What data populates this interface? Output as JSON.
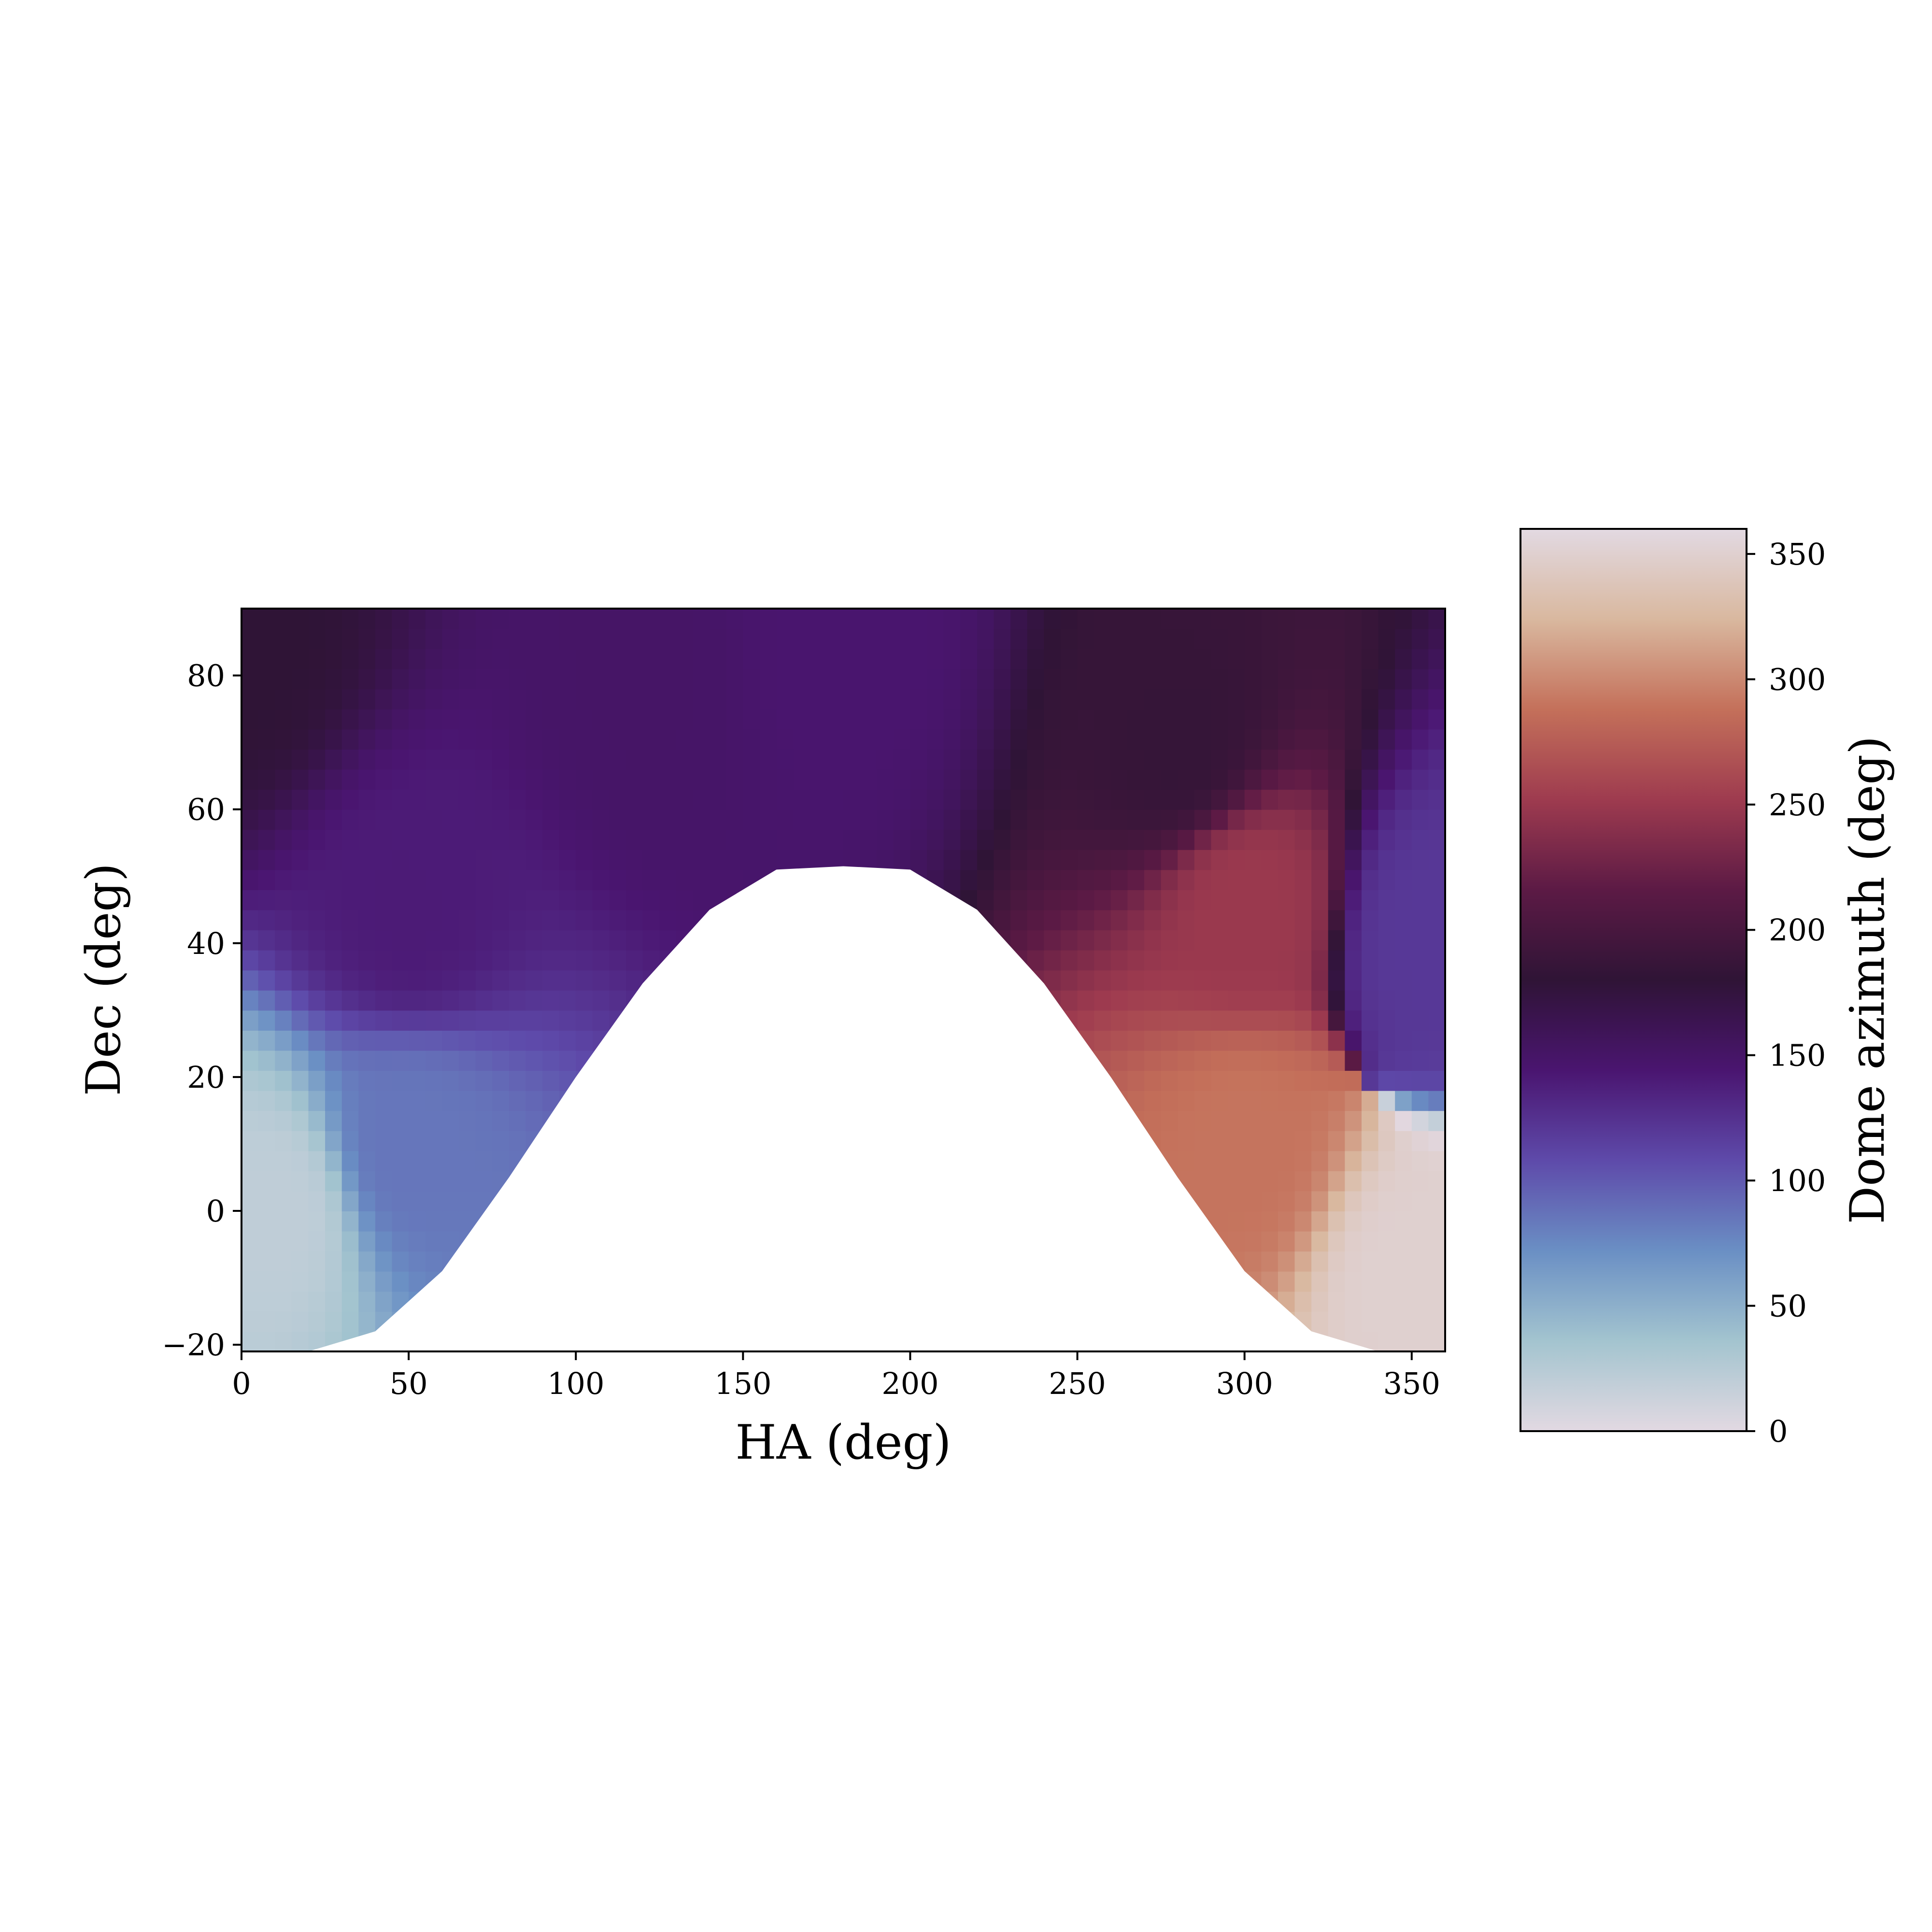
{
  "chart_data": {
    "type": "heatmap",
    "title": "",
    "xlabel": "HA (deg)",
    "ylabel": "Dec (deg)",
    "xlim": [
      0,
      360
    ],
    "ylim": [
      -21,
      90
    ],
    "xticks": [
      0,
      50,
      100,
      150,
      200,
      250,
      300,
      350
    ],
    "yticks": [
      -20,
      0,
      20,
      40,
      60,
      80
    ],
    "ytick_labels": [
      "−20",
      "0",
      "20",
      "40",
      "60",
      "80"
    ],
    "colorbar": {
      "label": "Dome azimuth (deg)",
      "range": [
        0,
        360
      ],
      "ticks": [
        0,
        50,
        100,
        150,
        200,
        250,
        300,
        350
      ],
      "colormap": "twilight_shifted",
      "colors": [
        "#e2d9e2",
        "#a3c4cf",
        "#6a8fc4",
        "#5e4aaa",
        "#4a1570",
        "#2f1436",
        "#5c1a45",
        "#9e3b4f",
        "#c4705a",
        "#d9b89f",
        "#e2d9e2"
      ]
    },
    "masked_region": {
      "description": "no data (white) where telescope is below horizon",
      "dec_upper_bound": [
        {
          "ha": 0,
          "dec": -21
        },
        {
          "ha": 20,
          "dec": -21
        },
        {
          "ha": 40,
          "dec": -18
        },
        {
          "ha": 60,
          "dec": -9
        },
        {
          "ha": 80,
          "dec": 5
        },
        {
          "ha": 100,
          "dec": 20
        },
        {
          "ha": 120,
          "dec": 34
        },
        {
          "ha": 140,
          "dec": 45
        },
        {
          "ha": 160,
          "dec": 51
        },
        {
          "ha": 180,
          "dec": 51.5
        },
        {
          "ha": 200,
          "dec": 51
        },
        {
          "ha": 220,
          "dec": 45
        },
        {
          "ha": 240,
          "dec": 34
        },
        {
          "ha": 260,
          "dec": 20
        },
        {
          "ha": 280,
          "dec": 5
        },
        {
          "ha": 300,
          "dec": -9
        },
        {
          "ha": 320,
          "dec": -18
        },
        {
          "ha": 340,
          "dec": -21
        },
        {
          "ha": 360,
          "dec": -21
        }
      ]
    },
    "value_field_samples": [
      {
        "ha": 0,
        "dec": 85,
        "az": 180
      },
      {
        "ha": 120,
        "dec": 80,
        "az": 150
      },
      {
        "ha": 180,
        "dec": 85,
        "az": 145
      },
      {
        "ha": 280,
        "dec": 70,
        "az": 185
      },
      {
        "ha": 50,
        "dec": 45,
        "az": 140
      },
      {
        "ha": 50,
        "dec": 10,
        "az": 85
      },
      {
        "ha": 10,
        "dec": 0,
        "az": 20
      },
      {
        "ha": 300,
        "dec": 10,
        "az": 290
      },
      {
        "ha": 350,
        "dec": -10,
        "az": 350
      },
      {
        "ha": 300,
        "dec": 45,
        "az": 250
      },
      {
        "ha": 355,
        "dec": 40,
        "az": 120
      }
    ]
  }
}
